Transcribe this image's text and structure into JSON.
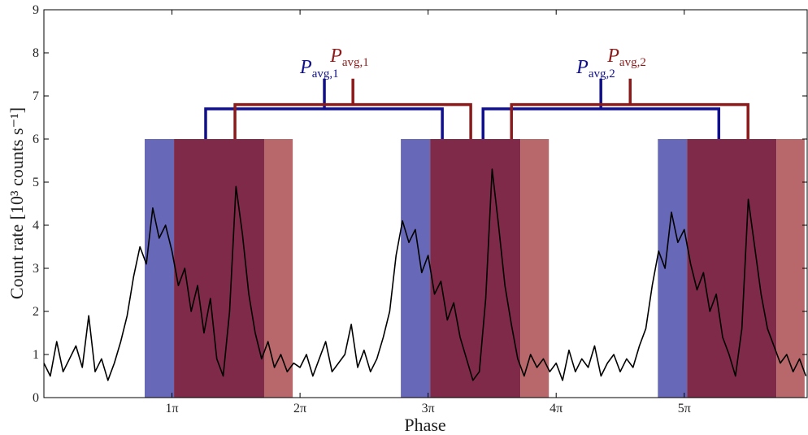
{
  "chart_data": {
    "type": "line",
    "x_label": "Phase",
    "y_label": "Count rate [10³ counts s⁻¹]",
    "xlim": [
      0,
      5.96
    ],
    "ylim": [
      0,
      9
    ],
    "xticks": [
      {
        "value": 1,
        "label": "1π"
      },
      {
        "value": 2,
        "label": "2π"
      },
      {
        "value": 3,
        "label": "3π"
      },
      {
        "value": 4,
        "label": "4π"
      },
      {
        "value": 5,
        "label": "5π"
      }
    ],
    "yticks": [
      0,
      1,
      2,
      3,
      4,
      5,
      6,
      7,
      8,
      9
    ],
    "series": [
      {
        "color": "#000000",
        "x": [
          0,
          0.05,
          0.1,
          0.15,
          0.2,
          0.25,
          0.3,
          0.35,
          0.4,
          0.45,
          0.5,
          0.55,
          0.6,
          0.65,
          0.7,
          0.75,
          0.8,
          0.85,
          0.9,
          0.95,
          1,
          1.05,
          1.1,
          1.15,
          1.2,
          1.25,
          1.3,
          1.35,
          1.4,
          1.45,
          1.5,
          1.55,
          1.6,
          1.65,
          1.7,
          1.75,
          1.8,
          1.85,
          1.9,
          1.95,
          2,
          2.05,
          2.1,
          2.15,
          2.2,
          2.25,
          2.3,
          2.35,
          2.4,
          2.45,
          2.5,
          2.55,
          2.6,
          2.65,
          2.7,
          2.75,
          2.8,
          2.85,
          2.9,
          2.95,
          3,
          3.05,
          3.1,
          3.15,
          3.2,
          3.25,
          3.3,
          3.35,
          3.4,
          3.45,
          3.5,
          3.55,
          3.6,
          3.65,
          3.7,
          3.75,
          3.8,
          3.85,
          3.9,
          3.95,
          4,
          4.05,
          4.1,
          4.15,
          4.2,
          4.25,
          4.3,
          4.35,
          4.4,
          4.45,
          4.5,
          4.55,
          4.6,
          4.65,
          4.7,
          4.75,
          4.8,
          4.85,
          4.9,
          4.95,
          5,
          5.05,
          5.1,
          5.15,
          5.2,
          5.25,
          5.3,
          5.35,
          5.4,
          5.45,
          5.5,
          5.55,
          5.6,
          5.65,
          5.7,
          5.75,
          5.8,
          5.85,
          5.9,
          5.95
        ],
        "values": [
          0.8,
          0.5,
          1.3,
          0.6,
          0.9,
          1.2,
          0.7,
          1.9,
          0.6,
          0.9,
          0.4,
          0.8,
          1.3,
          1.9,
          2.8,
          3.5,
          3.1,
          4.4,
          3.7,
          4.0,
          3.4,
          2.6,
          3.0,
          2.0,
          2.6,
          1.5,
          2.3,
          0.9,
          0.5,
          2.0,
          4.9,
          3.8,
          2.4,
          1.5,
          0.9,
          1.3,
          0.7,
          1.0,
          0.6,
          0.8,
          0.7,
          1.0,
          0.5,
          0.9,
          1.3,
          0.6,
          0.8,
          1.0,
          1.7,
          0.7,
          1.1,
          0.6,
          0.9,
          1.4,
          2.0,
          3.3,
          4.1,
          3.6,
          3.9,
          2.9,
          3.3,
          2.4,
          2.7,
          1.8,
          2.2,
          1.4,
          0.9,
          0.4,
          0.6,
          2.3,
          5.3,
          4.0,
          2.6,
          1.7,
          0.9,
          0.5,
          1.0,
          0.7,
          0.9,
          0.6,
          0.8,
          0.4,
          1.1,
          0.6,
          0.9,
          0.7,
          1.2,
          0.5,
          0.8,
          1.0,
          0.6,
          0.9,
          0.7,
          1.2,
          1.6,
          2.6,
          3.4,
          3.0,
          4.3,
          3.6,
          3.9,
          3.1,
          2.5,
          2.9,
          2.0,
          2.4,
          1.4,
          1.0,
          0.5,
          1.6,
          4.6,
          3.5,
          2.4,
          1.6,
          1.2,
          0.8,
          1.0,
          0.6,
          0.9,
          0.5
        ]
      }
    ],
    "spans": [
      {
        "x0": 0.787,
        "x1": 1.016,
        "ymax": 6,
        "color": "#6868b8"
      },
      {
        "x0": 1.016,
        "x1": 1.72,
        "ymax": 6,
        "color": "#7e2a48"
      },
      {
        "x0": 1.72,
        "x1": 1.943,
        "ymax": 6,
        "color": "#b8686a"
      },
      {
        "x0": 2.787,
        "x1": 3.016,
        "ymax": 6,
        "color": "#6868b8"
      },
      {
        "x0": 3.016,
        "x1": 3.72,
        "ymax": 6,
        "color": "#7e2a48"
      },
      {
        "x0": 3.72,
        "x1": 3.943,
        "ymax": 6,
        "color": "#b8686a"
      },
      {
        "x0": 4.794,
        "x1": 5.022,
        "ymax": 6,
        "color": "#6868b8"
      },
      {
        "x0": 5.022,
        "x1": 5.72,
        "ymax": 6,
        "color": "#7e2a48"
      },
      {
        "x0": 5.72,
        "x1": 5.94,
        "ymax": 6,
        "color": "#b8686a"
      }
    ],
    "brackets": [
      {
        "x0": 1.263,
        "x1": 3.111,
        "xc": 2.19,
        "y0": 6,
        "y1": 6.7,
        "ytop": 7.4,
        "color": "#10108c",
        "label": "P",
        "subscript": "avg,1"
      },
      {
        "x0": 1.492,
        "x1": 3.333,
        "xc": 2.413,
        "y0": 6,
        "y1": 6.8,
        "ytop": 7.4,
        "color": "#8c1a1a",
        "label": "P",
        "subscript": "avg,1"
      },
      {
        "x0": 3.429,
        "x1": 5.27,
        "xc": 4.349,
        "y0": 6,
        "y1": 6.7,
        "ytop": 7.4,
        "color": "#10108c",
        "label": "P",
        "subscript": "avg,2"
      },
      {
        "x0": 3.651,
        "x1": 5.498,
        "xc": 4.578,
        "y0": 6,
        "y1": 6.8,
        "ytop": 7.4,
        "color": "#8c1a1a",
        "label": "P",
        "subscript": "avg,2"
      }
    ]
  }
}
